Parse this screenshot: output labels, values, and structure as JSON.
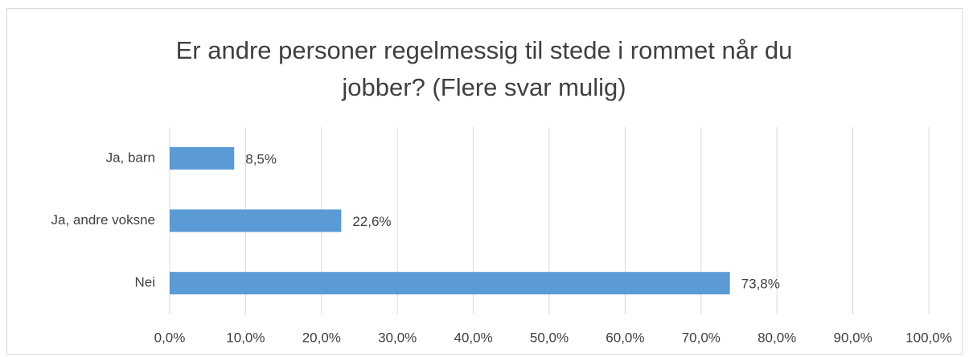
{
  "chart_data": {
    "type": "barh",
    "title": "Er andre personer regelmessig til stede i rommet når du jobber? (Flere svar mulig)",
    "categories": [
      "Ja, barn",
      "Ja, andre voksne",
      "Nei"
    ],
    "values": [
      8.5,
      22.6,
      73.8
    ],
    "value_labels": [
      "8,5%",
      "22,6%",
      "73,8%"
    ],
    "color": "#5b9bd5",
    "xlim": [
      0,
      100
    ],
    "xticks": [
      {
        "value": 0,
        "label": "0,0%"
      },
      {
        "value": 10,
        "label": "10,0%"
      },
      {
        "value": 20,
        "label": "20,0%"
      },
      {
        "value": 30,
        "label": "30,0%"
      },
      {
        "value": 40,
        "label": "40,0%"
      },
      {
        "value": 50,
        "label": "50,0%"
      },
      {
        "value": 60,
        "label": "60,0%"
      },
      {
        "value": 70,
        "label": "70,0%"
      },
      {
        "value": 80,
        "label": "80,0%"
      },
      {
        "value": 90,
        "label": "90,0%"
      },
      {
        "value": 100,
        "label": "100,0%"
      }
    ],
    "grid": true
  }
}
